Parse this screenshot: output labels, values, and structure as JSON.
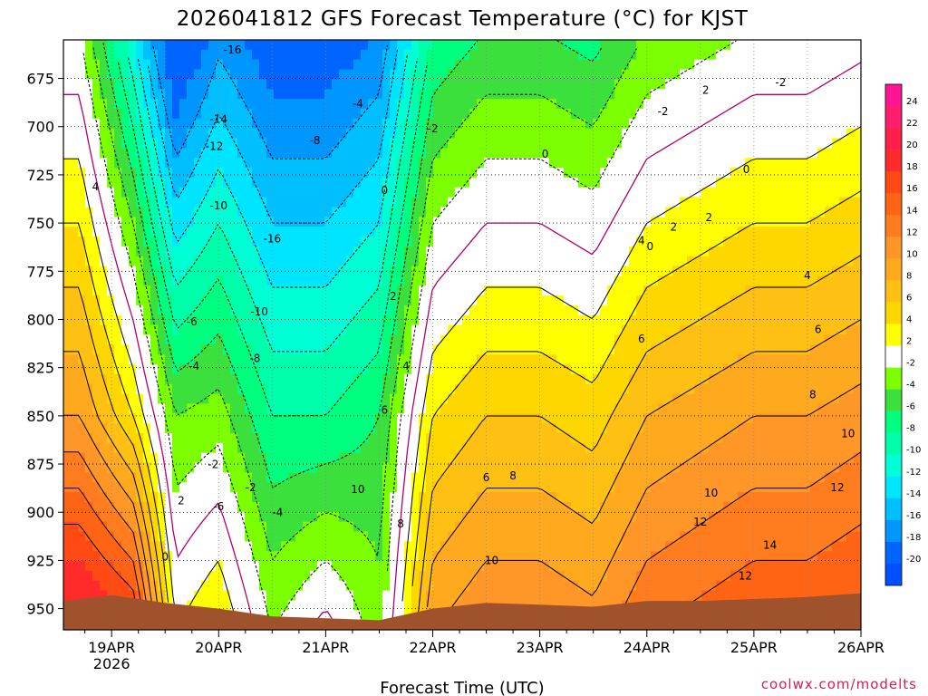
{
  "chart_data": {
    "type": "heatmap",
    "title": "2026041812 GFS Forecast Temperature (°C) for KJST",
    "xlabel": "Forecast Time (UTC)",
    "ylabel": "",
    "credit": "coolwx.com/modelts",
    "x_ticks": [
      "19APR",
      "20APR",
      "21APR",
      "22APR",
      "23APR",
      "24APR",
      "25APR",
      "26APR"
    ],
    "x_year_label": "2026",
    "xlim_days": [
      18.55,
      26.0
    ],
    "y_ticks": [
      675,
      700,
      725,
      750,
      775,
      800,
      825,
      850,
      875,
      900,
      925,
      950
    ],
    "ylim_hpa": [
      961,
      655
    ],
    "colorbar": {
      "labels": [
        "24",
        "22",
        "20",
        "18",
        "16",
        "14",
        "12",
        "10",
        "8",
        "6",
        "4",
        "2",
        "-2",
        "-4",
        "-6",
        "-8",
        "-10",
        "-12",
        "-14",
        "-16",
        "-18",
        "-20"
      ],
      "colors": [
        "#ff1493",
        "#ff1e6e",
        "#ff1f4a",
        "#ff2a2a",
        "#ff4a14",
        "#ff6414",
        "#ff7d1e",
        "#ff9628",
        "#ffa91e",
        "#ffc014",
        "#ffd700",
        "#ffff00",
        "#ffffff",
        "#7cff00",
        "#3ce03c",
        "#00ff7f",
        "#00ffaa",
        "#00ffd5",
        "#00e5ff",
        "#00bfff",
        "#0096ff",
        "#0064ff"
      ]
    },
    "ground_color": "#a0522d",
    "surface_pressure_hpa": [
      {
        "day": 18.55,
        "p": 946
      },
      {
        "day": 19.0,
        "p": 943
      },
      {
        "day": 19.5,
        "p": 947
      },
      {
        "day": 20.0,
        "p": 950
      },
      {
        "day": 20.5,
        "p": 954
      },
      {
        "day": 21.0,
        "p": 955
      },
      {
        "day": 21.5,
        "p": 956
      },
      {
        "day": 22.0,
        "p": 950
      },
      {
        "day": 22.5,
        "p": 947
      },
      {
        "day": 23.0,
        "p": 948
      },
      {
        "day": 23.5,
        "p": 949
      },
      {
        "day": 24.0,
        "p": 946
      },
      {
        "day": 24.5,
        "p": 946
      },
      {
        "day": 25.0,
        "p": 945
      },
      {
        "day": 25.5,
        "p": 944
      },
      {
        "day": 26.0,
        "p": 942
      }
    ],
    "temperature_profile_by_day": [
      {
        "day": 18.7,
        "t850": 10,
        "t925": 18,
        "lapse": 0.3
      },
      {
        "day": 19.2,
        "t850": 4,
        "t925": 14,
        "lapse": 0.4
      },
      {
        "day": 19.6,
        "t850": -4,
        "t925": 0,
        "lapse": 0.45
      },
      {
        "day": 20.0,
        "t850": -3,
        "t925": 2,
        "lapse": 0.35
      },
      {
        "day": 20.5,
        "t850": -8,
        "t925": -4,
        "lapse": 0.3
      },
      {
        "day": 21.0,
        "t850": -8,
        "t925": -2,
        "lapse": 0.3
      },
      {
        "day": 21.5,
        "t850": -6,
        "t925": -4,
        "lapse": 0.3
      },
      {
        "day": 22.0,
        "t850": 4,
        "t925": 8,
        "lapse": 0.3
      },
      {
        "day": 22.5,
        "t850": 6,
        "t925": 10,
        "lapse": 0.3
      },
      {
        "day": 23.0,
        "t850": 6,
        "t925": 10,
        "lapse": 0.3
      },
      {
        "day": 23.5,
        "t850": 5,
        "t925": 9,
        "lapse": 0.3
      },
      {
        "day": 24.0,
        "t850": 8,
        "t925": 12,
        "lapse": 0.3
      },
      {
        "day": 24.5,
        "t850": 9,
        "t925": 13,
        "lapse": 0.3
      },
      {
        "day": 25.0,
        "t850": 10,
        "t925": 14,
        "lapse": 0.3
      },
      {
        "day": 25.5,
        "t850": 10,
        "t925": 14,
        "lapse": 0.3
      },
      {
        "day": 26.0,
        "t850": 11,
        "t925": 15,
        "lapse": 0.3
      }
    ],
    "contour_labels": [
      {
        "text": "-16",
        "day": 20.13,
        "p": 662
      },
      {
        "text": "-14",
        "day": 20.0,
        "p": 698
      },
      {
        "text": "-12",
        "day": 19.96,
        "p": 712
      },
      {
        "text": "-10",
        "day": 20.0,
        "p": 743
      },
      {
        "text": "-16",
        "day": 20.5,
        "p": 760
      },
      {
        "text": "-8",
        "day": 20.9,
        "p": 709
      },
      {
        "text": "-4",
        "day": 21.3,
        "p": 690
      },
      {
        "text": "-6",
        "day": 19.75,
        "p": 803
      },
      {
        "text": "-4",
        "day": 19.77,
        "p": 826
      },
      {
        "text": "-10",
        "day": 20.38,
        "p": 798
      },
      {
        "text": "-8",
        "day": 20.34,
        "p": 822
      },
      {
        "text": "-2",
        "day": 19.95,
        "p": 877
      },
      {
        "text": "-6",
        "day": 20.0,
        "p": 899
      },
      {
        "text": "-2",
        "day": 20.3,
        "p": 889
      },
      {
        "text": "-4",
        "day": 20.55,
        "p": 902
      },
      {
        "text": "2",
        "day": 19.65,
        "p": 896
      },
      {
        "text": "0",
        "day": 19.5,
        "p": 925
      },
      {
        "text": "4",
        "day": 18.85,
        "p": 733
      },
      {
        "text": "-2",
        "day": 22.0,
        "p": 703
      },
      {
        "text": "0",
        "day": 21.55,
        "p": 735
      },
      {
        "text": "2",
        "day": 21.63,
        "p": 790
      },
      {
        "text": "4",
        "day": 21.75,
        "p": 826
      },
      {
        "text": "6",
        "day": 21.55,
        "p": 849
      },
      {
        "text": "10",
        "day": 21.3,
        "p": 890
      },
      {
        "text": "8",
        "day": 21.7,
        "p": 908
      },
      {
        "text": "6",
        "day": 22.5,
        "p": 884
      },
      {
        "text": "8",
        "day": 22.75,
        "p": 883
      },
      {
        "text": "10",
        "day": 22.55,
        "p": 927
      },
      {
        "text": "4",
        "day": 23.95,
        "p": 761
      },
      {
        "text": "2",
        "day": 24.25,
        "p": 754
      },
      {
        "text": "6",
        "day": 23.95,
        "p": 812
      },
      {
        "text": "2",
        "day": 24.58,
        "p": 749
      },
      {
        "text": "0",
        "day": 24.03,
        "p": 764
      },
      {
        "text": "0",
        "day": 23.05,
        "p": 716
      },
      {
        "text": "0",
        "day": 24.93,
        "p": 724
      },
      {
        "text": "-2",
        "day": 24.15,
        "p": 694
      },
      {
        "text": "2",
        "day": 24.55,
        "p": 683
      },
      {
        "text": "-2",
        "day": 25.25,
        "p": 679
      },
      {
        "text": "4",
        "day": 25.5,
        "p": 779
      },
      {
        "text": "6",
        "day": 25.6,
        "p": 807
      },
      {
        "text": "8",
        "day": 25.55,
        "p": 841
      },
      {
        "text": "10",
        "day": 25.88,
        "p": 861
      },
      {
        "text": "10",
        "day": 24.6,
        "p": 892
      },
      {
        "text": "12",
        "day": 24.5,
        "p": 907
      },
      {
        "text": "12",
        "day": 25.78,
        "p": 889
      },
      {
        "text": "14",
        "day": 25.15,
        "p": 919
      },
      {
        "text": "12",
        "day": 24.92,
        "p": 935
      }
    ]
  }
}
